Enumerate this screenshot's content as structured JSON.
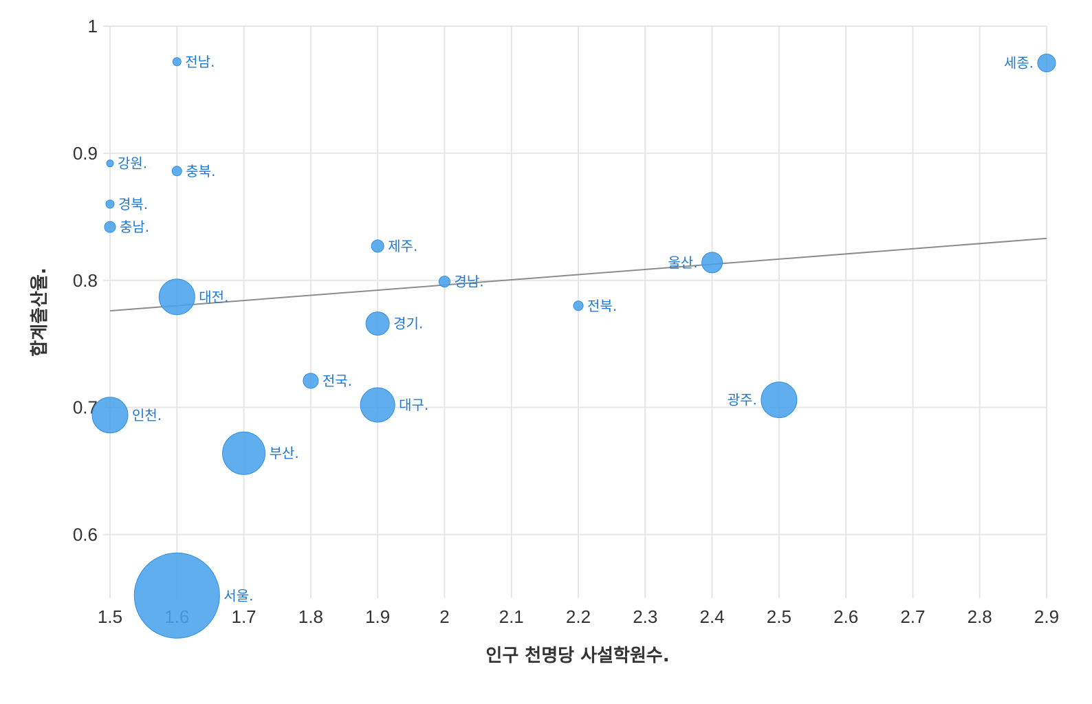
{
  "chart_data": {
    "type": "scatter",
    "xlabel": "인구 천명당 사설학원수.",
    "ylabel": "합계출산율.",
    "xlim": [
      1.5,
      2.9
    ],
    "ylim": [
      0.55,
      1.0
    ],
    "x_ticks": [
      "1.5",
      "1.6",
      "1.7",
      "1.8",
      "1.9",
      "2",
      "2.1",
      "2.2",
      "2.3",
      "2.4",
      "2.5",
      "2.6",
      "2.7",
      "2.8",
      "2.9"
    ],
    "y_ticks": [
      "0.6",
      "0.7",
      "0.8",
      "0.9",
      "1"
    ],
    "grid": true,
    "bubble_color": "#4aa3ec",
    "label_color": "#1f78d1",
    "trendline": {
      "x": [
        1.5,
        2.9
      ],
      "y": [
        0.776,
        0.833
      ],
      "color": "#8c8c8c"
    },
    "points": [
      {
        "label": "서울.",
        "x": 1.6,
        "y": 0.552,
        "r": 62
      },
      {
        "label": "부산.",
        "x": 1.7,
        "y": 0.664,
        "r": 31
      },
      {
        "label": "대구.",
        "x": 1.9,
        "y": 0.702,
        "r": 25
      },
      {
        "label": "인천.",
        "x": 1.5,
        "y": 0.694,
        "r": 26
      },
      {
        "label": "광주.",
        "x": 2.5,
        "y": 0.706,
        "r": 26
      },
      {
        "label": "대전.",
        "x": 1.6,
        "y": 0.787,
        "r": 26
      },
      {
        "label": "울산.",
        "x": 2.4,
        "y": 0.814,
        "r": 15
      },
      {
        "label": "세종.",
        "x": 2.9,
        "y": 0.971,
        "r": 13
      },
      {
        "label": "경기.",
        "x": 1.9,
        "y": 0.766,
        "r": 17
      },
      {
        "label": "강원.",
        "x": 1.5,
        "y": 0.892,
        "r": 5
      },
      {
        "label": "충북.",
        "x": 1.6,
        "y": 0.886,
        "r": 7
      },
      {
        "label": "충남.",
        "x": 1.5,
        "y": 0.842,
        "r": 8
      },
      {
        "label": "전북.",
        "x": 2.2,
        "y": 0.78,
        "r": 7
      },
      {
        "label": "전남.",
        "x": 1.6,
        "y": 0.972,
        "r": 6
      },
      {
        "label": "경북.",
        "x": 1.5,
        "y": 0.86,
        "r": 6
      },
      {
        "label": "경남.",
        "x": 2.0,
        "y": 0.799,
        "r": 8
      },
      {
        "label": "제주.",
        "x": 1.9,
        "y": 0.827,
        "r": 9
      },
      {
        "label": "전국.",
        "x": 1.8,
        "y": 0.721,
        "r": 11
      }
    ]
  }
}
